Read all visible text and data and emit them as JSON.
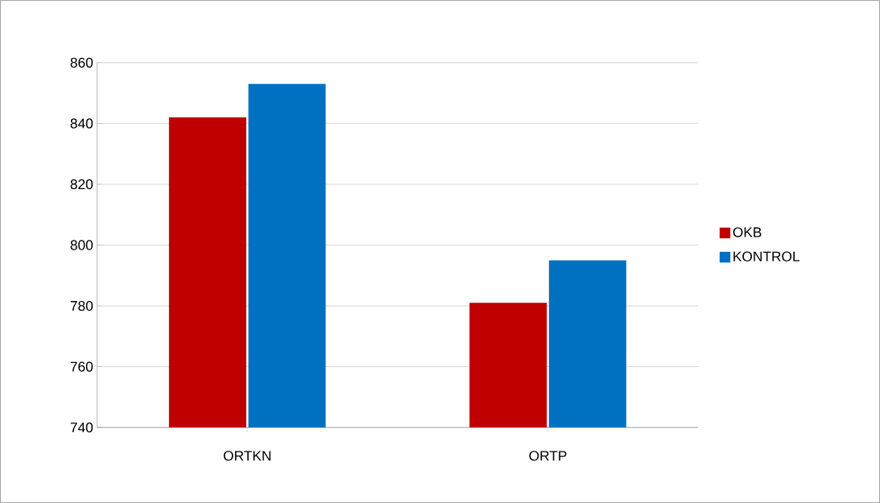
{
  "chart_data": {
    "type": "bar",
    "categories": [
      "ORTKN",
      "ORTP"
    ],
    "series": [
      {
        "name": "OKB",
        "color": "#c00000",
        "values": [
          842,
          781
        ]
      },
      {
        "name": "KONTROL",
        "color": "#0070c0",
        "values": [
          853,
          795
        ]
      }
    ],
    "ylim": [
      740,
      860
    ],
    "yticks": [
      740,
      760,
      780,
      800,
      820,
      840,
      860
    ],
    "grid": "y",
    "legend": "right"
  }
}
